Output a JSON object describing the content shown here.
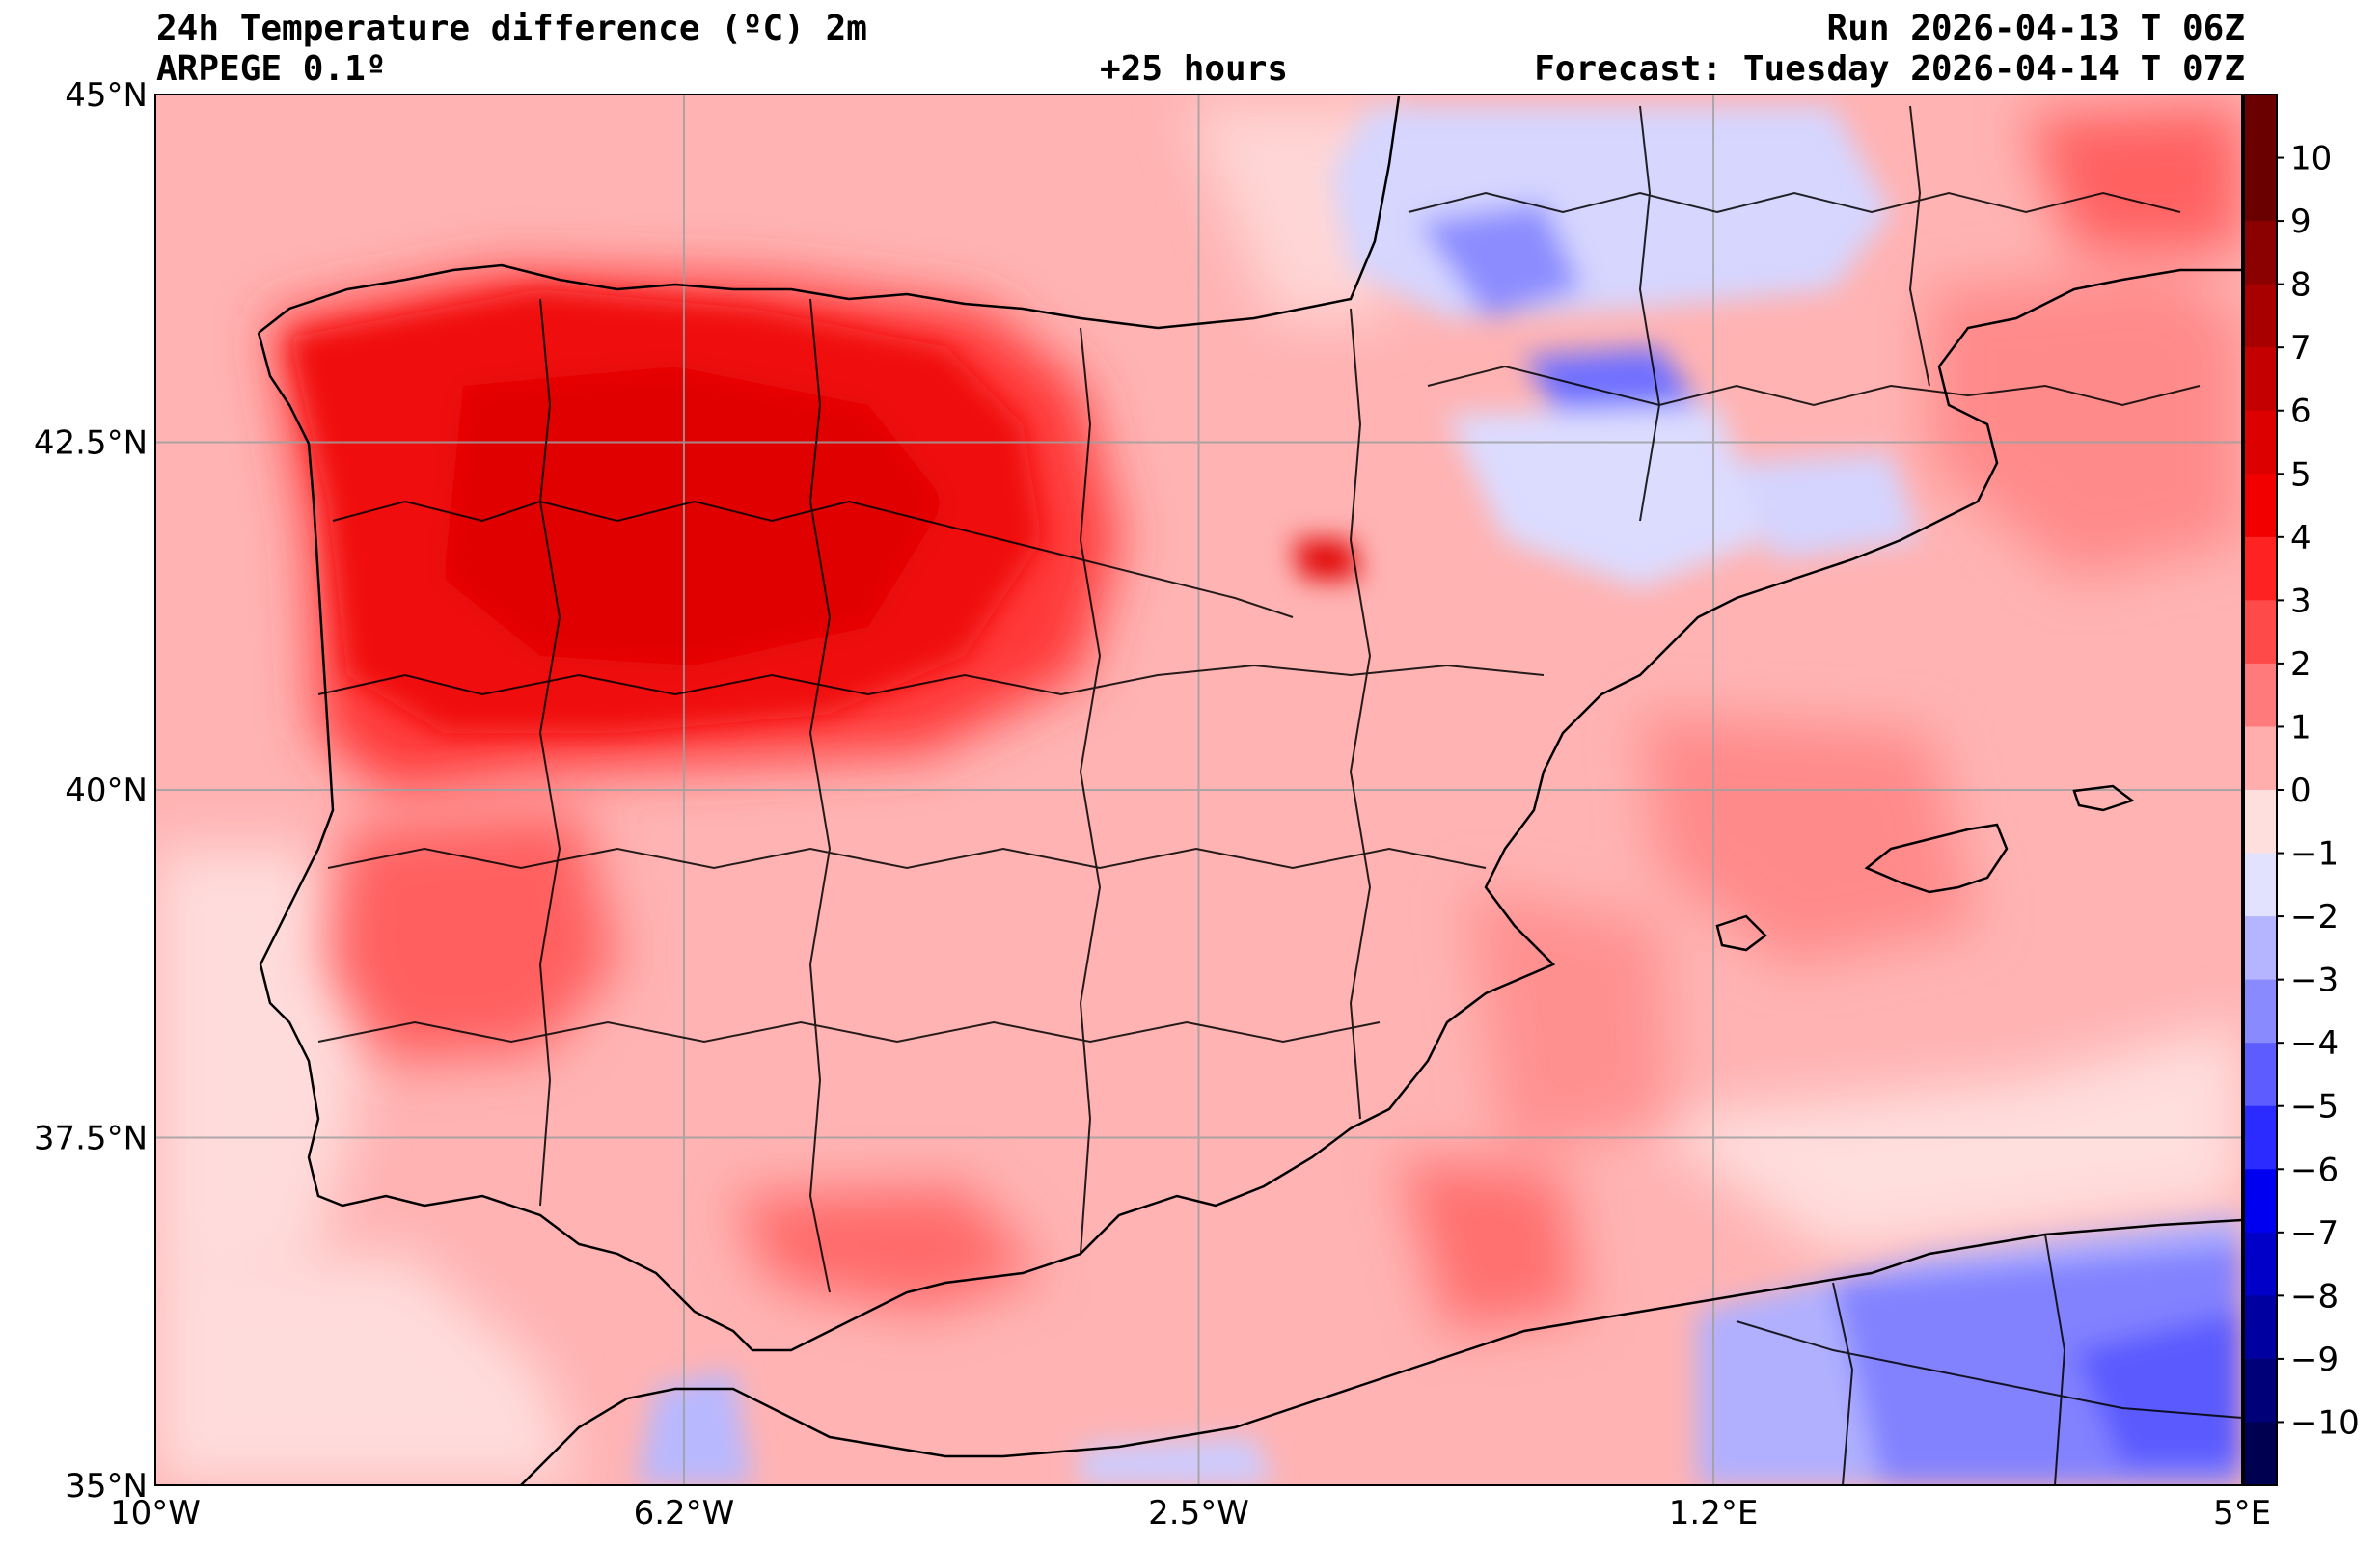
{
  "header": {
    "title": "24h Temperature difference (ºC) 2m",
    "model": "ARPEGE 0.1º",
    "lead": "+25 hours",
    "run": "Run 2026-04-13 T 06Z",
    "forecast": "Forecast: Tuesday 2026-04-14 T 07Z"
  },
  "map": {
    "lon_range": [
      -10,
      5
    ],
    "lat_range": [
      35,
      45
    ],
    "lon_ticks": [
      {
        "value": -10,
        "label": "10°W"
      },
      {
        "value": -6.2,
        "label": "6.2°W"
      },
      {
        "value": -2.5,
        "label": "2.5°W"
      },
      {
        "value": 1.2,
        "label": "1.2°E"
      },
      {
        "value": 5,
        "label": "5°E"
      }
    ],
    "lat_ticks": [
      {
        "value": 45,
        "label": "45°N"
      },
      {
        "value": 42.5,
        "label": "42.5°N"
      },
      {
        "value": 40,
        "label": "40°N"
      },
      {
        "value": 37.5,
        "label": "37.5°N"
      },
      {
        "value": 35,
        "label": "35°N"
      }
    ],
    "grid": true
  },
  "colorbar": {
    "labels": [
      "10",
      "9",
      "8",
      "7",
      "6",
      "5",
      "4",
      "3",
      "2",
      "1",
      "0",
      "−1",
      "−2",
      "−3",
      "−4",
      "−5",
      "−6",
      "−7",
      "−8",
      "−9",
      "−10"
    ],
    "colors": [
      "#6a0000",
      "#8b0000",
      "#a80000",
      "#c40000",
      "#dd0000",
      "#f20000",
      "#ff2222",
      "#ff4a4a",
      "#ff7a7a",
      "#ffadad",
      "#ffdede",
      "#e2e2ff",
      "#b4b4ff",
      "#8a8aff",
      "#5c5cff",
      "#2b2bff",
      "#0000f0",
      "#0000c8",
      "#0000a0",
      "#000078",
      "#000050"
    ]
  }
}
